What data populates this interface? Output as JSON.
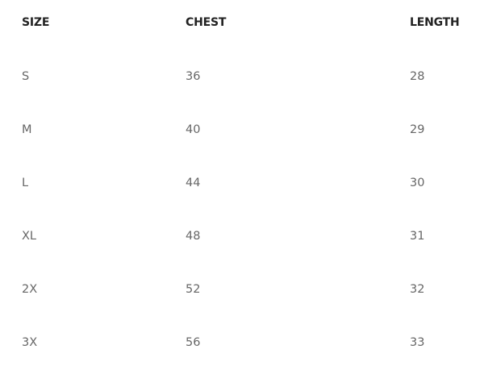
{
  "table": {
    "header": [
      "SIZE",
      "CHEST",
      "LENGTH"
    ],
    "rows": [
      [
        "S",
        36,
        28
      ],
      [
        "M",
        40,
        29
      ],
      [
        "L",
        44,
        30
      ],
      [
        "XL",
        48,
        31
      ],
      [
        "2X",
        52,
        32
      ],
      [
        "3X",
        56,
        33
      ]
    ]
  }
}
